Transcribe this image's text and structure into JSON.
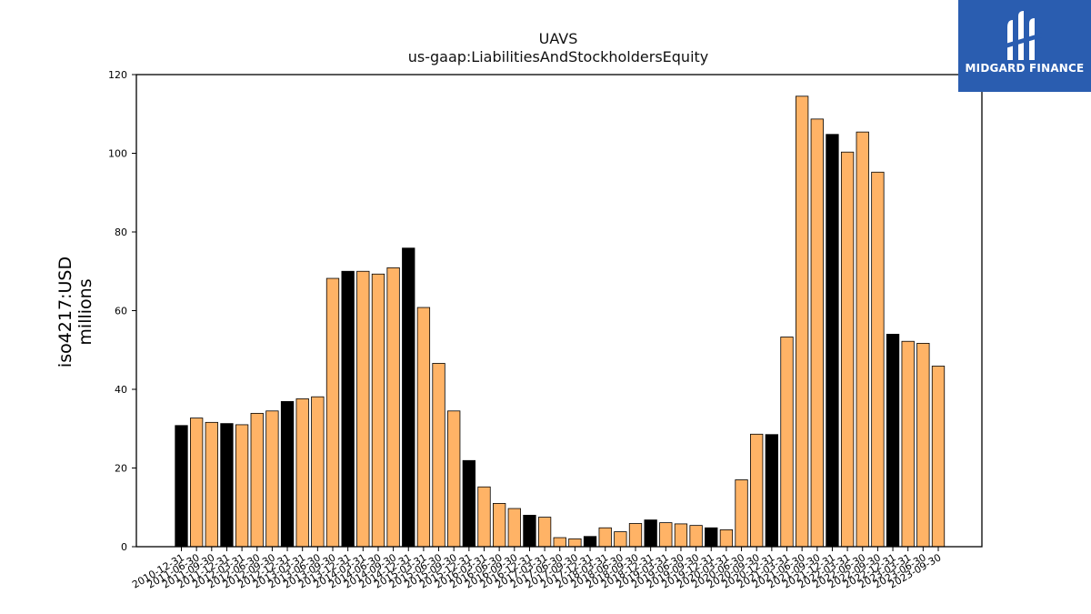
{
  "chart_data": {
    "type": "bar",
    "title": "UAVS",
    "subtitle": "us-gaap:LiabilitiesAndStockholdersEquity",
    "ylabel_line1": "iso4217:USD",
    "ylabel_line2": "millions",
    "xlabel": "",
    "ylim": [
      0,
      120
    ],
    "yticks": [
      0,
      20,
      40,
      60,
      80,
      100,
      120
    ],
    "grid": false,
    "colors": {
      "default": "#ffb366",
      "highlight": "#000000",
      "edge": "#000000"
    },
    "categories": [
      "2010-12-31",
      "2011-06-30",
      "2011-09-30",
      "2011-12-31",
      "2012-03-31",
      "2012-06-30",
      "2012-09-30",
      "2012-12-31",
      "2013-03-31",
      "2013-06-30",
      "2013-09-30",
      "2013-12-31",
      "2014-03-31",
      "2014-06-30",
      "2014-09-30",
      "2014-12-31",
      "2015-03-31",
      "2015-06-30",
      "2015-09-30",
      "2015-12-31",
      "2016-03-31",
      "2016-06-30",
      "2016-09-30",
      "2016-12-31",
      "2017-03-31",
      "2017-06-30",
      "2017-09-30",
      "2017-12-31",
      "2018-03-31",
      "2018-06-30",
      "2018-09-30",
      "2018-12-31",
      "2019-03-31",
      "2019-06-30",
      "2019-09-30",
      "2019-12-31",
      "2020-03-31",
      "2020-06-30",
      "2020-09-30",
      "2020-12-31",
      "2021-03-31",
      "2021-06-30",
      "2021-09-30",
      "2021-12-31",
      "2022-03-31",
      "2022-06-30",
      "2022-09-30",
      "2022-12-31",
      "2023-03-31",
      "2023-06-30",
      "2023-09-30"
    ],
    "values": [
      30.8,
      32.7,
      31.6,
      31.3,
      31.0,
      33.9,
      34.5,
      36.9,
      37.6,
      38.1,
      68.2,
      70.0,
      70.0,
      69.3,
      70.9,
      75.9,
      60.8,
      46.6,
      34.5,
      21.9,
      15.2,
      11.0,
      9.7,
      8.0,
      7.5,
      2.3,
      2.0,
      2.6,
      4.8,
      3.8,
      5.9,
      6.8,
      6.1,
      5.8,
      5.4,
      4.8,
      4.3,
      17.0,
      28.6,
      28.5,
      53.3,
      114.5,
      108.7,
      104.8,
      100.3,
      105.4,
      95.2,
      54.0,
      52.2,
      51.7,
      45.9
    ],
    "highlight": [
      true,
      false,
      false,
      true,
      false,
      false,
      false,
      true,
      false,
      false,
      false,
      true,
      false,
      false,
      false,
      true,
      false,
      false,
      false,
      true,
      false,
      false,
      false,
      true,
      false,
      false,
      false,
      true,
      false,
      false,
      false,
      true,
      false,
      false,
      false,
      true,
      false,
      false,
      false,
      true,
      false,
      false,
      false,
      true,
      false,
      false,
      false,
      true,
      false,
      false,
      false
    ]
  },
  "logo": {
    "text": "MIDGARD FINANCE",
    "background": "#2a5db0"
  }
}
